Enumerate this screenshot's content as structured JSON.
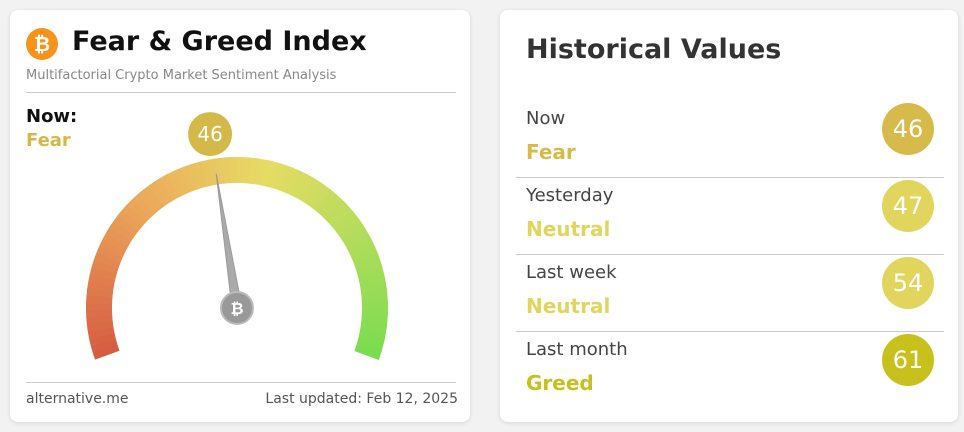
{
  "left_card": {
    "title": "Fear & Greed Index",
    "subtitle": "Multifactorial Crypto Market Sentiment Analysis",
    "now_label": "Now:",
    "now_classification": "Fear",
    "now_color": "#d4b94a",
    "value": 46,
    "gauge_range": [
      0,
      100
    ],
    "footer_source": "alternative.me",
    "footer_updated": "Last updated: Feb 12, 2025"
  },
  "right_card": {
    "title": "Historical Values",
    "rows": [
      {
        "period": "Now",
        "classification": "Fear",
        "value": 46,
        "color": "#d6bb4b"
      },
      {
        "period": "Yesterday",
        "classification": "Neutral",
        "value": 47,
        "color": "#e1d55e"
      },
      {
        "period": "Last week",
        "classification": "Neutral",
        "value": 54,
        "color": "#e1d55e"
      },
      {
        "period": "Last month",
        "classification": "Greed",
        "value": 61,
        "color": "#c8c01c"
      }
    ]
  }
}
